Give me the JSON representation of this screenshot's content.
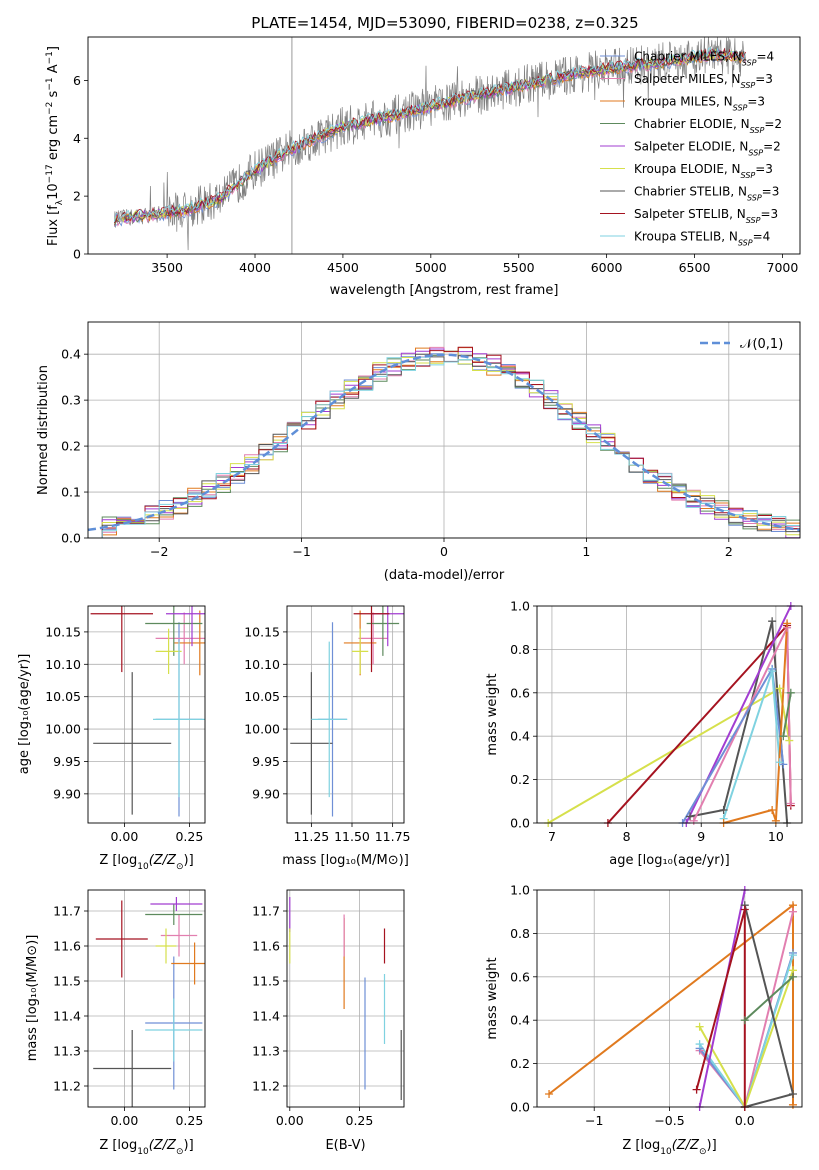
{
  "figure": {
    "title": "PLATE=1454, MJD=53090, FIBERID=0238, z=0.325"
  },
  "colors": {
    "Chabrier MILES": "#6f8fd6",
    "Salpeter MILES": "#e27fb0",
    "Kroupa MILES": "#e07a1f",
    "Chabrier ELODIE": "#5d8a5d",
    "Salpeter ELODIE": "#a23dd1",
    "Kroupa ELODIE": "#d6e04c",
    "Chabrier STELIB": "#555555",
    "Salpeter STELIB": "#a51320",
    "Kroupa STELIB": "#7fd2e0",
    "data": "#808080",
    "normal": "#5f8fd8"
  },
  "chart_data": [
    {
      "id": "spectrum",
      "type": "line",
      "title": "PLATE=1454, MJD=53090, FIBERID=0238, z=0.325",
      "xlabel": "wavelength [Angstrom, rest frame]",
      "ylabel": "Flux [f_λ10^{-17} erg cm^{-2} s^{-1} A^{-1}]",
      "xlim": [
        3050,
        7100
      ],
      "ylim": [
        0,
        7.5
      ],
      "xticks": [
        3500,
        4000,
        4500,
        5000,
        5500,
        6000,
        6500,
        7000
      ],
      "yticks": [
        0,
        2,
        4,
        6
      ],
      "legend_position": "top-right",
      "series": [
        {
          "name": "Chabrier MILES, N_SSP=4"
        },
        {
          "name": "Salpeter MILES, N_SSP=3"
        },
        {
          "name": "Kroupa MILES, N_SSP=3"
        },
        {
          "name": "Chabrier ELODIE, N_SSP=2"
        },
        {
          "name": "Salpeter ELODIE, N_SSP=2"
        },
        {
          "name": "Kroupa ELODIE, N_SSP=3"
        },
        {
          "name": "Chabrier STELIB, N_SSP=3"
        },
        {
          "name": "Salpeter STELIB, N_SSP=3"
        },
        {
          "name": "Kroupa STELIB, N_SSP=4"
        }
      ],
      "continuum": {
        "x": [
          3200,
          3400,
          3600,
          3800,
          4000,
          4200,
          4500,
          4800,
          5000,
          5200,
          5500,
          5800,
          6000,
          6300,
          6600,
          6800
        ],
        "y": [
          1.2,
          1.35,
          1.5,
          1.9,
          2.9,
          3.6,
          4.4,
          4.8,
          5.1,
          5.4,
          5.8,
          6.2,
          6.4,
          6.6,
          6.9,
          6.8
        ]
      }
    },
    {
      "id": "residuals",
      "type": "histogram",
      "xlabel": "(data-model)/error",
      "ylabel": "Normed distribution",
      "xlim": [
        -2.5,
        2.5
      ],
      "ylim": [
        0,
        0.47
      ],
      "xticks": [
        -2,
        -1,
        0,
        1,
        2
      ],
      "yticks": [
        0.0,
        0.1,
        0.2,
        0.3,
        0.4
      ],
      "grid": true,
      "legend": "𝒩(0,1)",
      "legend_position": "top-right"
    },
    {
      "id": "age_vs_Z",
      "type": "errorbar",
      "xlabel": "Z [log₁₀(Z/Z⊙)]",
      "ylabel": "age  [log₁₀(age/yr)]",
      "xlim": [
        -0.14,
        0.31
      ],
      "ylim": [
        9.855,
        10.19
      ],
      "xticks": [
        0.0,
        0.25
      ],
      "yticks": [
        9.9,
        9.95,
        10.0,
        10.05,
        10.1,
        10.15
      ],
      "grid": true,
      "points": [
        {
          "series": "Chabrier MILES",
          "x": 0.21,
          "xerr": 0.09,
          "y": 10.015,
          "yerr": 0.15
        },
        {
          "series": "Salpeter MILES",
          "x": 0.23,
          "xerr": 0.11,
          "y": 10.14,
          "yerr": 0.04
        },
        {
          "series": "Kroupa MILES",
          "x": 0.29,
          "xerr": 0.1,
          "y": 10.133,
          "yerr": 0.05
        },
        {
          "series": "Chabrier ELODIE",
          "x": 0.19,
          "xerr": 0.11,
          "y": 10.163,
          "yerr": 0.05
        },
        {
          "series": "Salpeter ELODIE",
          "x": 0.26,
          "xerr": 0.1,
          "y": 10.178,
          "yerr": 0.05
        },
        {
          "series": "Kroupa ELODIE",
          "x": 0.17,
          "xerr": 0.05,
          "y": 10.12,
          "yerr": 0.035
        },
        {
          "series": "Chabrier STELIB",
          "x": 0.03,
          "xerr": 0.15,
          "y": 9.978,
          "yerr": 0.11
        },
        {
          "series": "Salpeter STELIB",
          "x": -0.01,
          "xerr": 0.12,
          "y": 10.178,
          "yerr": 0.09
        },
        {
          "series": "Kroupa STELIB",
          "x": 0.21,
          "xerr": 0.1,
          "y": 10.015,
          "yerr": 0.12
        }
      ]
    },
    {
      "id": "age_vs_mass",
      "type": "errorbar",
      "xlabel": "mass [log₁₀(M/M⊙)]",
      "ylabel": "",
      "xlim": [
        11.1,
        11.82
      ],
      "ylim": [
        9.855,
        10.19
      ],
      "xticks": [
        11.25,
        11.5,
        11.75
      ],
      "yticks": [
        9.9,
        9.95,
        10.0,
        10.05,
        10.1,
        10.15
      ],
      "grid": true,
      "points": [
        {
          "series": "Chabrier MILES",
          "x": 11.38,
          "xerr": 0.09,
          "y": 10.015,
          "yerr": 0.15
        },
        {
          "series": "Salpeter MILES",
          "x": 11.63,
          "xerr": 0.09,
          "y": 10.14,
          "yerr": 0.04
        },
        {
          "series": "Kroupa MILES",
          "x": 11.55,
          "xerr": 0.1,
          "y": 10.133,
          "yerr": 0.05
        },
        {
          "series": "Chabrier ELODIE",
          "x": 11.69,
          "xerr": 0.1,
          "y": 10.163,
          "yerr": 0.05
        },
        {
          "series": "Salpeter ELODIE",
          "x": 11.72,
          "xerr": 0.1,
          "y": 10.178,
          "yerr": 0.05
        },
        {
          "series": "Kroupa ELODIE",
          "x": 11.55,
          "xerr": 0.05,
          "y": 10.12,
          "yerr": 0.035
        },
        {
          "series": "Chabrier STELIB",
          "x": 11.25,
          "xerr": 0.13,
          "y": 9.978,
          "yerr": 0.11
        },
        {
          "series": "Salpeter STELIB",
          "x": 11.62,
          "xerr": 0.11,
          "y": 10.178,
          "yerr": 0.09
        },
        {
          "series": "Kroupa STELIB",
          "x": 11.36,
          "xerr": 0.11,
          "y": 10.015,
          "yerr": 0.12
        }
      ]
    },
    {
      "id": "massweight_vs_age",
      "type": "line",
      "xlabel": "age  [log₁₀(age/yr)]",
      "ylabel": "mass weight",
      "xlim": [
        6.8,
        10.35
      ],
      "ylim": [
        0,
        1
      ],
      "xticks": [
        7,
        8,
        9,
        10
      ],
      "yticks": [
        0.0,
        0.2,
        0.4,
        0.6,
        0.8,
        1.0
      ],
      "grid": true,
      "series": [
        {
          "series": "Kroupa ELODIE",
          "x": [
            6.95,
            10.05,
            10.18
          ],
          "y": [
            0.0,
            0.62,
            0.38
          ]
        },
        {
          "series": "Salpeter STELIB",
          "x": [
            7.75,
            10.15,
            10.2
          ],
          "y": [
            0.0,
            0.91,
            0.08
          ]
        },
        {
          "series": "Chabrier STELIB",
          "x": [
            8.85,
            9.3,
            9.95,
            10.15
          ],
          "y": [
            0.03,
            0.06,
            0.93,
            0.0
          ]
        },
        {
          "series": "Salpeter ELODIE",
          "x": [
            8.8,
            10.2
          ],
          "y": [
            0.0,
            1.0
          ]
        },
        {
          "series": "Salpeter MILES",
          "x": [
            8.9,
            10.15,
            10.2
          ],
          "y": [
            0.01,
            0.9,
            0.09
          ]
        },
        {
          "series": "Chabrier MILES",
          "x": [
            8.75,
            9.95,
            10.1
          ],
          "y": [
            0.0,
            0.71,
            0.27
          ]
        },
        {
          "series": "Kroupa STELIB",
          "x": [
            9.3,
            9.95,
            10.05
          ],
          "y": [
            0.02,
            0.7,
            0.28
          ]
        },
        {
          "series": "Kroupa MILES",
          "x": [
            9.3,
            9.95,
            10.0,
            10.15
          ],
          "y": [
            0.0,
            0.06,
            0.01,
            0.92
          ]
        },
        {
          "series": "Chabrier ELODIE",
          "x": [
            10.1,
            10.2
          ],
          "y": [
            0.4,
            0.6
          ]
        }
      ]
    },
    {
      "id": "mass_vs_Z",
      "type": "errorbar",
      "xlabel": "Z [log₁₀(Z/Z⊙)]",
      "ylabel": "mass [log₁₀(M/M⊙)]",
      "xlim": [
        -0.14,
        0.31
      ],
      "ylim": [
        11.14,
        11.76
      ],
      "xticks": [
        0.0,
        0.25
      ],
      "yticks": [
        11.2,
        11.3,
        11.4,
        11.5,
        11.6,
        11.7
      ],
      "grid": true,
      "points": [
        {
          "series": "Chabrier MILES",
          "x": 0.19,
          "xerr": 0.11,
          "y": 11.38,
          "yerr": 0.19
        },
        {
          "series": "Salpeter MILES",
          "x": 0.21,
          "xerr": 0.07,
          "y": 11.63,
          "yerr": 0.06
        },
        {
          "series": "Kroupa MILES",
          "x": 0.27,
          "xerr": 0.09,
          "y": 11.55,
          "yerr": 0.06
        },
        {
          "series": "Chabrier ELODIE",
          "x": 0.19,
          "xerr": 0.11,
          "y": 11.69,
          "yerr": 0.03
        },
        {
          "series": "Salpeter ELODIE",
          "x": 0.2,
          "xerr": 0.1,
          "y": 11.72,
          "yerr": 0.02
        },
        {
          "series": "Kroupa ELODIE",
          "x": 0.16,
          "xerr": 0.04,
          "y": 11.6,
          "yerr": 0.05
        },
        {
          "series": "Chabrier STELIB",
          "x": 0.03,
          "xerr": 0.15,
          "y": 11.25,
          "yerr": 0.11
        },
        {
          "series": "Salpeter STELIB",
          "x": -0.01,
          "xerr": 0.1,
          "y": 11.62,
          "yerr": 0.11
        },
        {
          "series": "Kroupa STELIB",
          "x": 0.19,
          "xerr": 0.11,
          "y": 11.36,
          "yerr": 0.09
        }
      ]
    },
    {
      "id": "mass_vs_EBV",
      "type": "errorbar",
      "xlabel": "E(B-V)",
      "ylabel": "",
      "xlim": [
        -0.01,
        0.41
      ],
      "ylim": [
        11.14,
        11.76
      ],
      "xticks": [
        0.0,
        0.25
      ],
      "yticks": [
        11.2,
        11.3,
        11.4,
        11.5,
        11.6,
        11.7
      ],
      "grid": true,
      "points": [
        {
          "series": "Salpeter ELODIE",
          "x": 0.0,
          "y": 11.69,
          "yerr": 0.05
        },
        {
          "series": "Kroupa ELODIE",
          "x": 0.0,
          "y": 11.6,
          "yerr": 0.05
        },
        {
          "series": "Kroupa MILES",
          "x": 0.195,
          "y": 11.55,
          "yerr": 0.13
        },
        {
          "series": "Salpeter MILES",
          "x": 0.195,
          "y": 11.63,
          "yerr": 0.06
        },
        {
          "series": "Chabrier MILES",
          "x": 0.27,
          "y": 11.35,
          "yerr": 0.16
        },
        {
          "series": "Salpeter STELIB",
          "x": 0.34,
          "y": 11.6,
          "yerr": 0.05
        },
        {
          "series": "Kroupa STELIB",
          "x": 0.34,
          "y": 11.42,
          "yerr": 0.1
        },
        {
          "series": "Chabrier STELIB",
          "x": 0.4,
          "y": 11.26,
          "yerr": 0.1
        }
      ]
    },
    {
      "id": "massweight_vs_Z",
      "type": "line",
      "xlabel": "Z [log₁₀(Z/Z⊙)]",
      "ylabel": "mass weight",
      "xlim": [
        -1.38,
        0.38
      ],
      "ylim": [
        0,
        1
      ],
      "xticks": [
        -1.0,
        -0.5,
        0.0
      ],
      "yticks": [
        0.0,
        0.2,
        0.4,
        0.6,
        0.8,
        1.0
      ],
      "grid": true,
      "series": [
        {
          "series": "Kroupa MILES",
          "x": [
            -1.3,
            0.32,
            0.32
          ],
          "y": [
            0.06,
            0.93,
            0.01
          ]
        },
        {
          "series": "Salpeter MILES",
          "x": [
            -0.3,
            0.0,
            0.32
          ],
          "y": [
            0.26,
            0.0,
            0.9
          ]
        },
        {
          "series": "Chabrier MILES",
          "x": [
            -0.3,
            0.0,
            0.32
          ],
          "y": [
            0.27,
            0.0,
            0.71
          ]
        },
        {
          "series": "Kroupa STELIB",
          "x": [
            -0.3,
            0.0,
            0.32
          ],
          "y": [
            0.29,
            0.0,
            0.7
          ]
        },
        {
          "series": "Kroupa ELODIE",
          "x": [
            -0.3,
            0.0,
            0.32
          ],
          "y": [
            0.37,
            0.0,
            0.63
          ]
        },
        {
          "series": "Chabrier ELODIE",
          "x": [
            0.0,
            0.32
          ],
          "y": [
            0.4,
            0.6
          ]
        },
        {
          "series": "Chabrier STELIB",
          "x": [
            0.0,
            0.32,
            0.0
          ],
          "y": [
            0.0,
            0.06,
            0.93
          ]
        },
        {
          "series": "Salpeter ELODIE",
          "x": [
            -0.3,
            0.0
          ],
          "y": [
            0.0,
            1.0
          ]
        },
        {
          "series": "Salpeter STELIB",
          "x": [
            -0.32,
            0.0,
            0.0
          ],
          "y": [
            0.08,
            0.91,
            0.0
          ]
        }
      ]
    }
  ]
}
